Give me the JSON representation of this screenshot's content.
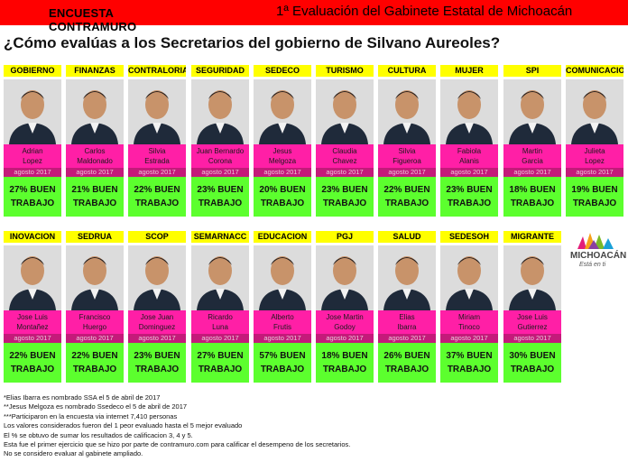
{
  "header": {
    "left_title": "ENCUESTA CONTRAMURO",
    "right_title": "1ª Evaluación del Gabinete Estatal de Michoacán"
  },
  "question": "¿Cómo evalúas a los Secretarios del gobierno de Silvano Aureoles?",
  "row1": [
    {
      "dept": "GOBIERNO",
      "name1": "Adrian",
      "name2": "Lopez",
      "date": "agosto 2017",
      "r1": "27% BUEN",
      "r2": "TRABAJO"
    },
    {
      "dept": "FINANZAS",
      "name1": "Carlos",
      "name2": "Maldonado",
      "date": "agosto 2017",
      "r1": "21% BUEN",
      "r2": "TRABAJO"
    },
    {
      "dept": "CONTRALORIA",
      "name1": "Silvia",
      "name2": "Estrada",
      "date": "agosto 2017",
      "r1": "22% BUEN",
      "r2": "TRABAJO"
    },
    {
      "dept": "SEGURIDAD",
      "name1": "Juan Bernardo",
      "name2": "Corona",
      "date": "agosto 2017",
      "r1": "23% BUEN",
      "r2": "TRABAJO"
    },
    {
      "dept": "SEDECO",
      "name1": "Jesus",
      "name2": "Melgoza",
      "date": "agosto 2017",
      "r1": "20% BUEN",
      "r2": "TRABAJO"
    },
    {
      "dept": "TURISMO",
      "name1": "Claudia",
      "name2": "Chavez",
      "date": "agosto 2017",
      "r1": "23% BUEN",
      "r2": "TRABAJO"
    },
    {
      "dept": "CULTURA",
      "name1": "Silvia",
      "name2": "Figueroa",
      "date": "agosto 2017",
      "r1": "22% BUEN",
      "r2": "TRABAJO"
    },
    {
      "dept": "MUJER",
      "name1": "Fabiola",
      "name2": "Alanis",
      "date": "agosto 2017",
      "r1": "23% BUEN",
      "r2": "TRABAJO"
    },
    {
      "dept": "SPI",
      "name1": "Martin",
      "name2": "Garcia",
      "date": "agosto 2017",
      "r1": "18% BUEN",
      "r2": "TRABAJO"
    },
    {
      "dept": "COMUNICACION",
      "name1": "Julieta",
      "name2": "Lopez",
      "date": "agosto 2017",
      "r1": "19% BUEN",
      "r2": "TRABAJO"
    }
  ],
  "row2": [
    {
      "dept": "INOVACION",
      "name1": "Jose Luis",
      "name2": "Montañez",
      "date": "agosto 2017",
      "r1": "22% BUEN",
      "r2": "TRABAJO"
    },
    {
      "dept": "SEDRUA",
      "name1": "Francisco",
      "name2": "Huergo",
      "date": "agosto 2017",
      "r1": "22% BUEN",
      "r2": "TRABAJO"
    },
    {
      "dept": "SCOP",
      "name1": "Jose Juan",
      "name2": "Dominguez",
      "date": "agosto 2017",
      "r1": "23% BUEN",
      "r2": "TRABAJO"
    },
    {
      "dept": "SEMARNACC",
      "name1": "Ricardo",
      "name2": "Luna",
      "date": "agosto 2017",
      "r1": "27% BUEN",
      "r2": "TRABAJO"
    },
    {
      "dept": "EDUCACION",
      "name1": "Alberto",
      "name2": "Frutis",
      "date": "agosto 2017",
      "r1": "57% BUEN",
      "r2": "TRABAJO"
    },
    {
      "dept": "PGJ",
      "name1": "Jose Martin",
      "name2": "Godoy",
      "date": "agosto 2017",
      "r1": "18% BUEN",
      "r2": "TRABAJO"
    },
    {
      "dept": "SALUD",
      "name1": "Elias",
      "name2": "Ibarra",
      "date": "agosto 2017",
      "r1": "26% BUEN",
      "r2": "TRABAJO"
    },
    {
      "dept": "SEDESOH",
      "name1": "Miriam",
      "name2": "Tinoco",
      "date": "agosto 2017",
      "r1": "37% BUEN",
      "r2": "TRABAJO"
    },
    {
      "dept": "MIGRANTE",
      "name1": "Jose Luis",
      "name2": "Gutierrez",
      "date": "agosto 2017",
      "r1": "30% BUEN",
      "r2": "TRABAJO"
    }
  ],
  "logo": {
    "line1": "MICHOACÁN",
    "line2": "Está en ti"
  },
  "notes": [
    "*Elias Ibarra es  nombrado SSA  el 5 de abril de 2017",
    "**Jesus Melgoza es nombrado Ssedeco el 5 de abril de 2017",
    "***Participaron en la encuesta via internet 7,410 personas",
    "Los valores considerados fueron del 1 peor evaluado hasta el 5 mejor evaluado",
    "El % se obtuvo de sumar los resultados de calificacion 3, 4 y 5.",
    "Esta fue el primer ejercicio que se hizo por parte de contramuro.com para calificar el desempeno de los secretarios.",
    "No se considero evaluar al gabinete ampliado."
  ],
  "colors": {
    "header_red": "#ff0000",
    "dept_yellow": "#ffff00",
    "name_pink": "#ff1fa6",
    "date_magenta": "#c41a7a",
    "result_green": "#5cff2e"
  },
  "photo_icon": "person-portrait-icon"
}
